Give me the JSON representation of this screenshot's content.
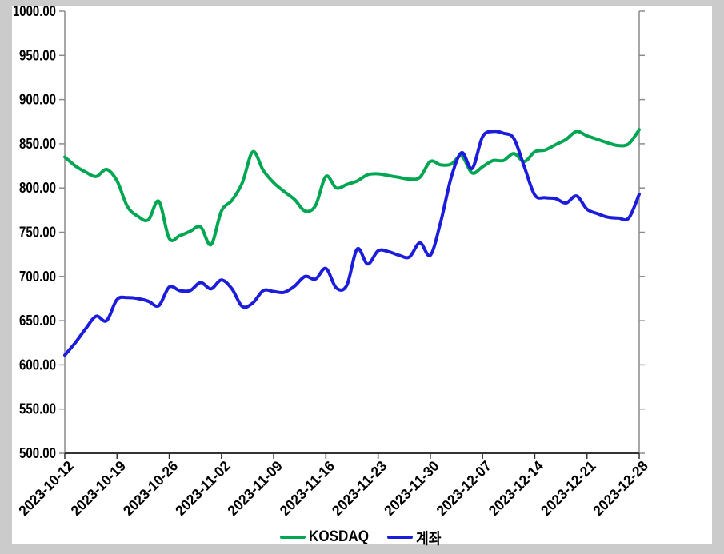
{
  "window": {
    "outer_background": "#cbcbcb",
    "surface_background": "#ffffff"
  },
  "chart_data": {
    "type": "line",
    "title": "",
    "grid": false,
    "axis_color": "#8a8a8a",
    "x_axis_color": "#333333",
    "label_color": "#000000",
    "y_axis": {
      "min": 500,
      "max": 1000,
      "step": 50,
      "tick_labels": [
        "1000.00",
        "950.00",
        "900.00",
        "850.00",
        "800.00",
        "750.00",
        "700.00",
        "650.00",
        "600.00",
        "550.00",
        "500.00"
      ]
    },
    "x_axis": {
      "tick_labels": [
        "2023-10-12",
        "2023-10-19",
        "2023-10-26",
        "2023-11-02",
        "2023-11-09",
        "2023-11-16",
        "2023-11-23",
        "2023-11-30",
        "2023-12-07",
        "2023-12-14",
        "2023-12-21",
        "2023-12-28"
      ],
      "points_per_tick": 5
    },
    "legend": {
      "position": "bottom-center"
    },
    "series": [
      {
        "name": "KOSDAQ",
        "color": "#00a651",
        "values": [
          835,
          825,
          818,
          813,
          821,
          808,
          779,
          768,
          764,
          785,
          743,
          746,
          751,
          756,
          736,
          774,
          786,
          806,
          841,
          820,
          806,
          796,
          787,
          774,
          780,
          813,
          800,
          804,
          808,
          815,
          816,
          814,
          812,
          810,
          812,
          830,
          826,
          827,
          836,
          817,
          824,
          831,
          831,
          839,
          830,
          841,
          843,
          849,
          855,
          864,
          859,
          855,
          851,
          848,
          850,
          866
        ]
      },
      {
        "name": "계좌",
        "color": "#1c1cdb",
        "values": [
          611,
          625,
          641,
          655,
          650,
          674,
          676,
          675,
          672,
          667,
          688,
          684,
          684,
          693,
          686,
          696,
          686,
          666,
          670,
          684,
          683,
          682,
          689,
          700,
          697,
          709,
          687,
          690,
          731,
          714,
          729,
          728,
          724,
          722,
          738,
          724,
          762,
          812,
          840,
          822,
          858,
          864,
          862,
          856,
          824,
          792,
          789,
          788,
          783,
          791,
          776,
          771,
          767,
          766,
          766,
          793
        ]
      }
    ]
  }
}
